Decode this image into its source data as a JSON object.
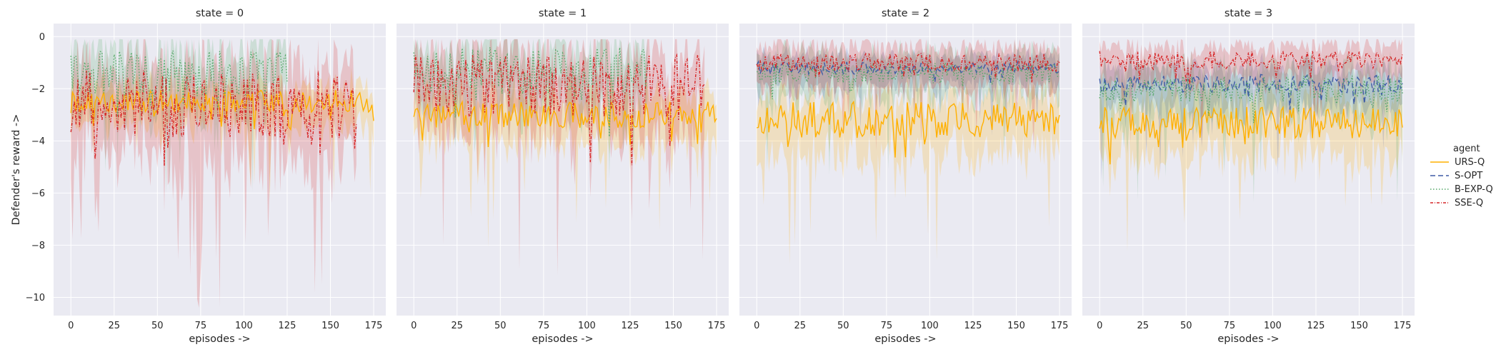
{
  "chart_data": {
    "type": "line",
    "ylabel": "Defender's reward ->",
    "xlabel": "episodes ->",
    "xlim": [
      -10,
      182
    ],
    "ylim": [
      -10.7,
      0.5
    ],
    "xticks": [
      0,
      25,
      50,
      75,
      100,
      125,
      150,
      175
    ],
    "yticks": [
      0,
      -2,
      -4,
      -6,
      -8,
      -10
    ],
    "grid": true,
    "legend": {
      "title": "agent",
      "placement": "right",
      "entries": [
        {
          "name": "URS-Q",
          "color": "#FFB000",
          "dash": "solid"
        },
        {
          "name": "S-OPT",
          "color": "#3F5CA6",
          "dash": "dashed"
        },
        {
          "name": "B-EXP-Q",
          "color": "#55A868",
          "dash": "dotted"
        },
        {
          "name": "SSE-Q",
          "color": "#D62728",
          "dash": "dashdot"
        }
      ]
    },
    "panels": [
      {
        "title": "state = 0",
        "series": [
          {
            "name": "URS-Q",
            "x_start": 0,
            "x_end": 175,
            "mean_level": -2.5,
            "spread": 0.45,
            "band": 0.8
          },
          {
            "name": "B-EXP-Q",
            "x_start": 0,
            "x_end": 125,
            "mean_level": -1.4,
            "spread": 0.9,
            "band": 1.2
          },
          {
            "name": "SSE-Q",
            "x_start": 0,
            "x_end": 165,
            "mean_level": -2.6,
            "spread": 1.3,
            "band": 1.8
          }
        ]
      },
      {
        "title": "state = 1",
        "series": [
          {
            "name": "URS-Q",
            "x_start": 0,
            "x_end": 175,
            "mean_level": -3.0,
            "spread": 0.5,
            "band": 1.0
          },
          {
            "name": "B-EXP-Q",
            "x_start": 0,
            "x_end": 135,
            "mean_level": -1.3,
            "spread": 0.9,
            "band": 1.2
          },
          {
            "name": "SSE-Q",
            "x_start": 0,
            "x_end": 168,
            "mean_level": -1.9,
            "spread": 1.2,
            "band": 1.5
          }
        ]
      },
      {
        "title": "state = 2",
        "series": [
          {
            "name": "URS-Q",
            "x_start": 0,
            "x_end": 175,
            "mean_level": -3.2,
            "spread": 0.7,
            "band": 1.2
          },
          {
            "name": "S-OPT",
            "x_start": 0,
            "x_end": 175,
            "mean_level": -1.2,
            "spread": 0.25,
            "band": 0.6
          },
          {
            "name": "B-EXP-Q",
            "x_start": 0,
            "x_end": 175,
            "mean_level": -1.4,
            "spread": 0.4,
            "band": 0.9
          },
          {
            "name": "SSE-Q",
            "x_start": 0,
            "x_end": 175,
            "mean_level": -1.0,
            "spread": 0.35,
            "band": 0.8
          }
        ]
      },
      {
        "title": "state = 3",
        "series": [
          {
            "name": "URS-Q",
            "x_start": 0,
            "x_end": 175,
            "mean_level": -3.3,
            "spread": 0.6,
            "band": 1.2
          },
          {
            "name": "S-OPT",
            "x_start": 0,
            "x_end": 175,
            "mean_level": -1.8,
            "spread": 0.35,
            "band": 0.8
          },
          {
            "name": "B-EXP-Q",
            "x_start": 0,
            "x_end": 175,
            "mean_level": -2.0,
            "spread": 0.5,
            "band": 1.0
          },
          {
            "name": "SSE-Q",
            "x_start": 0,
            "x_end": 175,
            "mean_level": -0.9,
            "spread": 0.35,
            "band": 0.7
          }
        ]
      }
    ]
  },
  "colors": {
    "panel_bg": "#EAEAF2",
    "grid": "#FFFFFF"
  }
}
